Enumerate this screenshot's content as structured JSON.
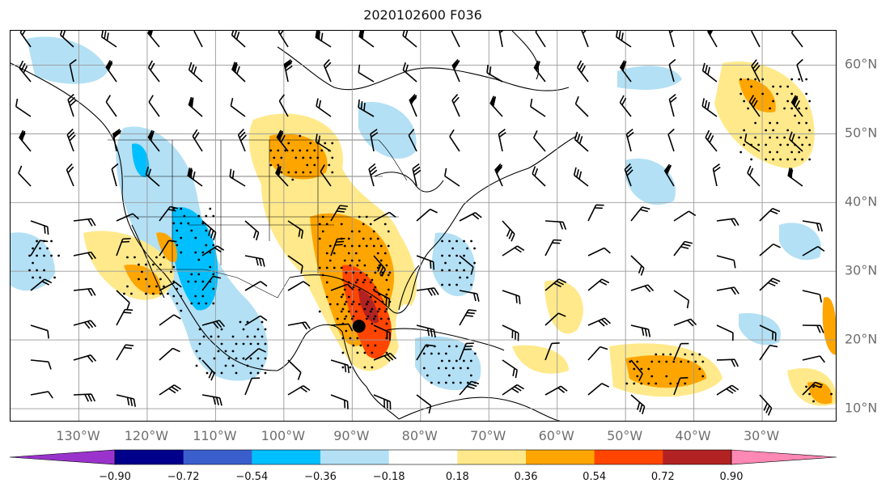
{
  "title": "2020102600 F036",
  "map": {
    "lat_labels": [
      "60°N",
      "50°N",
      "40°N",
      "30°N",
      "20°N",
      "10°N"
    ],
    "lat_values": [
      60,
      50,
      40,
      30,
      20,
      10
    ],
    "lon_labels": [
      "130°W",
      "120°W",
      "110°W",
      "100°W",
      "90°W",
      "80°W",
      "70°W",
      "60°W",
      "50°W",
      "40°W",
      "30°W"
    ],
    "lon_values": [
      -130,
      -120,
      -110,
      -100,
      -90,
      -80,
      -70,
      -60,
      -50,
      -40,
      -30
    ],
    "extent": {
      "lon_min": -140,
      "lon_max": -19,
      "lat_min": 8,
      "lat_max": 65
    },
    "storm_marker": {
      "lon": -89,
      "lat": 22
    },
    "gridlines": true
  },
  "colorbar": {
    "colors": [
      "#9a33cc",
      "#00008b",
      "#3a5fcd",
      "#00bfff",
      "#b3e0f5",
      "#ffffff",
      "#ffe98a",
      "#ffa500",
      "#ff4500",
      "#b22222",
      "#ff88b4"
    ],
    "tick_labels": [
      "−0.90",
      "−0.72",
      "−0.54",
      "−0.36",
      "−0.18",
      "0.18",
      "0.36",
      "0.54",
      "0.72",
      "0.90"
    ],
    "extend": "both"
  }
}
